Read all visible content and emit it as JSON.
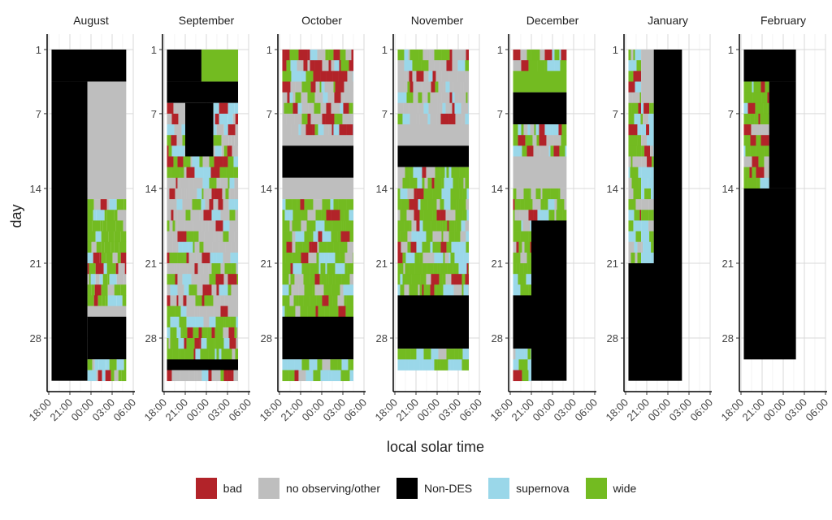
{
  "chart_data": {
    "type": "heatmap",
    "xlabel": "local solar time",
    "ylabel": "day",
    "x_ticks": [
      "18:00",
      "21:00",
      "00:00",
      "03:00",
      "06:00"
    ],
    "x_range_hours": [
      -6,
      6
    ],
    "y_ticks": [
      1,
      7,
      14,
      21,
      28
    ],
    "y_range_days": [
      1,
      31
    ],
    "y_reversed": true,
    "grid": true,
    "legend_position": "bottom",
    "categories": [
      {
        "name": "bad",
        "color": "#B22329"
      },
      {
        "name": "no observing/other",
        "color": "#BEBEBE"
      },
      {
        "name": "Non-DES",
        "color": "#000000"
      },
      {
        "name": "supernova",
        "color": "#9AD7E9"
      },
      {
        "name": "wide",
        "color": "#73BB21"
      }
    ],
    "panels": [
      {
        "month": "August",
        "blocks": [
          {
            "d0": 1,
            "d1": 4,
            "s": -5.6,
            "e": 5.0,
            "c": "Non-DES"
          },
          {
            "d0": 4,
            "d1": 32,
            "s": -5.6,
            "e": -0.5,
            "c": "Non-DES"
          },
          {
            "d0": 4,
            "d1": 15,
            "s": -0.5,
            "e": 5.0,
            "c": "no observing/other"
          },
          {
            "d0": 15,
            "d1": 25,
            "s": -0.5,
            "e": 5.0,
            "c": "mix-wide"
          },
          {
            "d0": 25,
            "d1": 26,
            "s": -0.5,
            "e": 5.0,
            "c": "no observing/other"
          },
          {
            "d0": 26,
            "d1": 30,
            "s": -0.5,
            "e": 5.0,
            "c": "Non-DES"
          },
          {
            "d0": 30,
            "d1": 32,
            "s": -0.5,
            "e": 5.0,
            "c": "mix-sn"
          }
        ]
      },
      {
        "month": "September",
        "blocks": [
          {
            "d0": 1,
            "d1": 4,
            "s": -5.6,
            "e": -0.7,
            "c": "Non-DES"
          },
          {
            "d0": 1,
            "d1": 4,
            "s": -0.7,
            "e": 4.5,
            "c": "wide"
          },
          {
            "d0": 4,
            "d1": 6,
            "s": -5.6,
            "e": 4.5,
            "c": "Non-DES"
          },
          {
            "d0": 6,
            "d1": 8,
            "s": -5.6,
            "e": -3.0,
            "c": "mix-grey"
          },
          {
            "d0": 6,
            "d1": 11,
            "s": -3.0,
            "e": 1.0,
            "c": "Non-DES"
          },
          {
            "d0": 6,
            "d1": 8,
            "s": 1.0,
            "e": 4.5,
            "c": "mix-sn"
          },
          {
            "d0": 8,
            "d1": 11,
            "s": -5.6,
            "e": -3.0,
            "c": "mix-grey"
          },
          {
            "d0": 8,
            "d1": 11,
            "s": 1.0,
            "e": 4.5,
            "c": "mix-grey"
          },
          {
            "d0": 11,
            "d1": 13,
            "s": -5.6,
            "e": 4.5,
            "c": "mix-wide"
          },
          {
            "d0": 13,
            "d1": 21,
            "s": -5.6,
            "e": 4.5,
            "c": "mix-grey"
          },
          {
            "d0": 21,
            "d1": 26,
            "s": -5.6,
            "e": 4.5,
            "c": "mix-grey"
          },
          {
            "d0": 26,
            "d1": 30,
            "s": -5.6,
            "e": 4.5,
            "c": "mix-wide"
          },
          {
            "d0": 30,
            "d1": 31,
            "s": -5.6,
            "e": 4.5,
            "c": "Non-DES"
          },
          {
            "d0": 31,
            "d1": 32,
            "s": -5.6,
            "e": 4.5,
            "c": "mix-grey"
          }
        ]
      },
      {
        "month": "October",
        "blocks": [
          {
            "d0": 1,
            "d1": 9,
            "s": -5.6,
            "e": 4.5,
            "c": "mix-bad"
          },
          {
            "d0": 9,
            "d1": 10,
            "s": -5.6,
            "e": 4.5,
            "c": "no observing/other"
          },
          {
            "d0": 10,
            "d1": 13,
            "s": -5.6,
            "e": 4.5,
            "c": "Non-DES"
          },
          {
            "d0": 13,
            "d1": 15,
            "s": -5.6,
            "e": 4.5,
            "c": "no observing/other"
          },
          {
            "d0": 15,
            "d1": 26,
            "s": -5.6,
            "e": 4.5,
            "c": "mix-wide"
          },
          {
            "d0": 26,
            "d1": 30,
            "s": -5.6,
            "e": 4.5,
            "c": "Non-DES"
          },
          {
            "d0": 30,
            "d1": 32,
            "s": -5.6,
            "e": 4.5,
            "c": "mix-sn"
          }
        ]
      },
      {
        "month": "November",
        "blocks": [
          {
            "d0": 1,
            "d1": 8,
            "s": -5.6,
            "e": 4.5,
            "c": "mix-grey"
          },
          {
            "d0": 8,
            "d1": 10,
            "s": -5.6,
            "e": 4.5,
            "c": "no observing/other"
          },
          {
            "d0": 10,
            "d1": 12,
            "s": -5.6,
            "e": 4.5,
            "c": "Non-DES"
          },
          {
            "d0": 12,
            "d1": 24,
            "s": -5.6,
            "e": 4.5,
            "c": "mix-wide"
          },
          {
            "d0": 24,
            "d1": 29,
            "s": -5.6,
            "e": 4.5,
            "c": "Non-DES"
          },
          {
            "d0": 29,
            "d1": 31,
            "s": -5.6,
            "e": 4.5,
            "c": "mix-sn"
          }
        ]
      },
      {
        "month": "December",
        "blocks": [
          {
            "d0": 1,
            "d1": 3,
            "s": -5.6,
            "e": 2.0,
            "c": "mix-bad"
          },
          {
            "d0": 3,
            "d1": 5,
            "s": -5.6,
            "e": 2.0,
            "c": "wide"
          },
          {
            "d0": 5,
            "d1": 8,
            "s": -5.6,
            "e": 2.0,
            "c": "Non-DES"
          },
          {
            "d0": 8,
            "d1": 11,
            "s": -5.6,
            "e": 2.0,
            "c": "mix-sn"
          },
          {
            "d0": 11,
            "d1": 14,
            "s": -5.6,
            "e": 2.0,
            "c": "no observing/other"
          },
          {
            "d0": 14,
            "d1": 17,
            "s": -5.6,
            "e": 2.0,
            "c": "mix-wide"
          },
          {
            "d0": 17,
            "d1": 32,
            "s": -3.0,
            "e": 2.0,
            "c": "Non-DES"
          },
          {
            "d0": 17,
            "d1": 24,
            "s": -5.6,
            "e": -3.0,
            "c": "mix-wide"
          },
          {
            "d0": 24,
            "d1": 29,
            "s": -5.6,
            "e": -3.0,
            "c": "Non-DES"
          },
          {
            "d0": 29,
            "d1": 32,
            "s": -5.6,
            "e": -3.0,
            "c": "mix-sn"
          }
        ]
      },
      {
        "month": "January",
        "blocks": [
          {
            "d0": 1,
            "d1": 21,
            "s": -5.6,
            "e": -3.8,
            "c": "mix-wide"
          },
          {
            "d0": 1,
            "d1": 6,
            "s": -3.8,
            "e": -2.0,
            "c": "no observing/other"
          },
          {
            "d0": 6,
            "d1": 21,
            "s": -3.8,
            "e": -2.0,
            "c": "mix-sn"
          },
          {
            "d0": 1,
            "d1": 21,
            "s": -2.0,
            "e": 2.0,
            "c": "Non-DES"
          },
          {
            "d0": 21,
            "d1": 32,
            "s": -5.6,
            "e": 2.0,
            "c": "Non-DES"
          }
        ]
      },
      {
        "month": "February",
        "blocks": [
          {
            "d0": 1,
            "d1": 4,
            "s": -5.6,
            "e": 1.8,
            "c": "Non-DES"
          },
          {
            "d0": 4,
            "d1": 14,
            "s": -5.6,
            "e": -2.0,
            "c": "mix-wide"
          },
          {
            "d0": 4,
            "d1": 14,
            "s": -2.0,
            "e": 1.8,
            "c": "Non-DES"
          },
          {
            "d0": 14,
            "d1": 30,
            "s": -5.6,
            "e": 1.8,
            "c": "Non-DES"
          }
        ]
      }
    ]
  }
}
